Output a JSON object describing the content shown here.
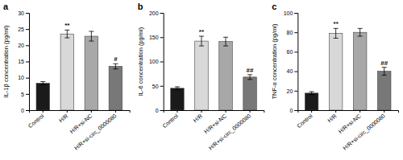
{
  "chart_data": [
    {
      "type": "bar",
      "title": "a",
      "ylabel": "IL-1β concentration (pg/ml)",
      "categories": [
        "Control",
        "H/R",
        "H/R+si-NC",
        "H/R+si-circ_0000080"
      ],
      "values": [
        8.3,
        23.5,
        22.8,
        13.5
      ],
      "errors": [
        0.5,
        1.2,
        1.5,
        0.8
      ],
      "colors": [
        "#1a1a1a",
        "#d8d8d8",
        "#a8a8a8",
        "#787878"
      ],
      "annotations": [
        null,
        "**",
        null,
        "#"
      ],
      "ylim": [
        0,
        30
      ],
      "yticks": [
        0,
        5,
        10,
        15,
        20,
        25,
        30
      ]
    },
    {
      "type": "bar",
      "title": "b",
      "ylabel": "IL-6 concentration (pg/ml)",
      "categories": [
        "Control",
        "H/R",
        "H/R+si-NC",
        "H/R+si-circ_0000080"
      ],
      "values": [
        45,
        142,
        141,
        68
      ],
      "errors": [
        3,
        10,
        9,
        5
      ],
      "colors": [
        "#1a1a1a",
        "#d8d8d8",
        "#a8a8a8",
        "#787878"
      ],
      "annotations": [
        null,
        "**",
        null,
        "##"
      ],
      "ylim": [
        0,
        200
      ],
      "yticks": [
        0,
        50,
        100,
        150,
        200
      ]
    },
    {
      "type": "bar",
      "title": "c",
      "ylabel": "TNF-α concentration (pg/ml)",
      "categories": [
        "Control",
        "H/R",
        "H/R+si-NC",
        "H/R+si-circ_0000080"
      ],
      "values": [
        17.5,
        79,
        80,
        40
      ],
      "errors": [
        1.5,
        5,
        4,
        4
      ],
      "colors": [
        "#1a1a1a",
        "#d8d8d8",
        "#a8a8a8",
        "#787878"
      ],
      "annotations": [
        null,
        "**",
        null,
        "##"
      ],
      "ylim": [
        0,
        100
      ],
      "yticks": [
        0,
        20,
        40,
        60,
        80,
        100
      ]
    }
  ]
}
